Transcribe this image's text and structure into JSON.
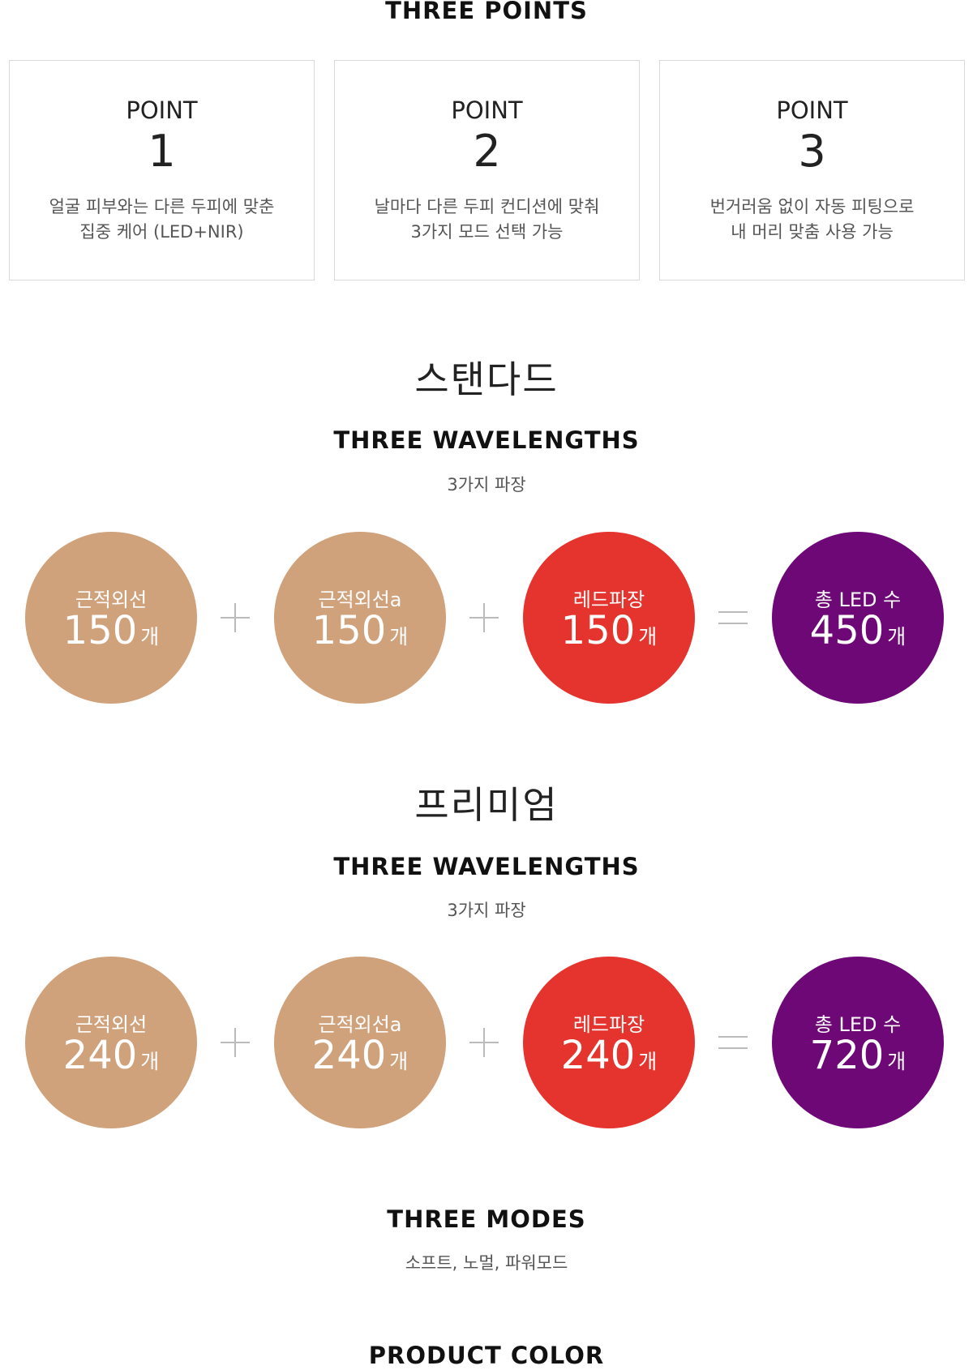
{
  "points_section": {
    "title": "THREE POINTS",
    "cards": [
      {
        "label": "POINT",
        "number": "1",
        "line1": "얼굴 피부와는 다른 두피에 맞춘",
        "line2": "집중 케어 (LED+NIR)"
      },
      {
        "label": "POINT",
        "number": "2",
        "line1": "날마다 다른 두피 컨디션에 맞춰",
        "line2": "3가지 모드 선택 가능"
      },
      {
        "label": "POINT",
        "number": "3",
        "line1": "번거러움 없이 자동 피팅으로",
        "line2": "내 머리 맞춤 사용 가능"
      }
    ]
  },
  "standard": {
    "title": "스탠다드",
    "heading": "THREE WAVELENGTHS",
    "subheading": "3가지 파장",
    "circles": [
      {
        "label": "근적외선",
        "value": "150",
        "unit": "개"
      },
      {
        "label": "근적외선a",
        "value": "150",
        "unit": "개"
      },
      {
        "label": "레드파장",
        "value": "150",
        "unit": "개"
      },
      {
        "label": "총 LED 수",
        "value": "450",
        "unit": "개"
      }
    ],
    "operators": [
      "plus",
      "plus",
      "equals"
    ]
  },
  "premium": {
    "title": "프리미엄",
    "heading": "THREE WAVELENGTHS",
    "subheading": "3가지 파장",
    "circles": [
      {
        "label": "근적외선",
        "value": "240",
        "unit": "개"
      },
      {
        "label": "근적외선a",
        "value": "240",
        "unit": "개"
      },
      {
        "label": "레드파장",
        "value": "240",
        "unit": "개"
      },
      {
        "label": "총 LED 수",
        "value": "720",
        "unit": "개"
      }
    ],
    "operators": [
      "plus",
      "plus",
      "equals"
    ]
  },
  "modes": {
    "heading": "THREE MODES",
    "subheading": "소프트, 노멀, 파워모드"
  },
  "color_section": {
    "heading": "PRODUCT COLOR"
  },
  "colors": {
    "tan": "#d0a27b",
    "red": "#e5342e",
    "purple": "#6e0877",
    "operator": "#bbbbbb",
    "card_border": "#d9d9d9"
  }
}
